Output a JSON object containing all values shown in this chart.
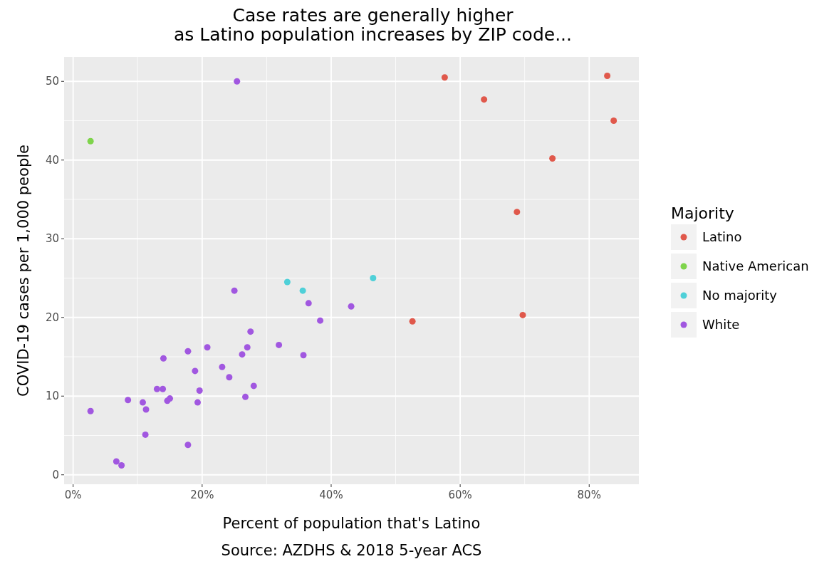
{
  "chart_data": {
    "type": "scatter",
    "title": "Case rates are generally higher\nas Latino population increases by ZIP code...",
    "xlabel": "Percent of population that's Latino",
    "ylabel": "COVID-19 cases per 1,000 people",
    "legend_title": "Majority",
    "legend": "right",
    "grid": true,
    "marker": "circle",
    "annotations": [
      "Source: AZDHS & 2018 5-year ACS"
    ],
    "xlim": [
      -1.4,
      87.7
    ],
    "ylim": [
      -1.2,
      53.1
    ],
    "xticks": [
      {
        "value": 0,
        "label": "0%"
      },
      {
        "value": 20,
        "label": "20%"
      },
      {
        "value": 40,
        "label": "40%"
      },
      {
        "value": 60,
        "label": "60%"
      },
      {
        "value": 80,
        "label": "80%"
      }
    ],
    "yticks": [
      0,
      10,
      20,
      30,
      40,
      50
    ],
    "series": [
      {
        "name": "Latino",
        "color": "#e0584b",
        "x": [
          57.6,
          63.7,
          82.8,
          83.8,
          74.3,
          68.8,
          52.6,
          69.7
        ],
        "values": [
          50.5,
          47.7,
          50.7,
          45.0,
          40.2,
          33.4,
          19.5,
          20.3
        ]
      },
      {
        "name": "Native American",
        "color": "#7ed44b",
        "x": [
          2.7
        ],
        "values": [
          42.4
        ]
      },
      {
        "name": "No majority",
        "color": "#4fd0d8",
        "x": [
          33.2,
          35.6,
          46.5
        ],
        "values": [
          24.5,
          23.4,
          25.0
        ]
      },
      {
        "name": "White",
        "color": "#a157e0",
        "x": [
          25.4,
          2.7,
          6.7,
          7.5,
          8.5,
          10.8,
          11.3,
          11.2,
          13.0,
          13.9,
          14.0,
          14.6,
          15.0,
          17.8,
          17.8,
          18.9,
          19.3,
          19.6,
          20.8,
          23.1,
          24.2,
          25.0,
          26.2,
          26.7,
          27.0,
          27.5,
          28.0,
          31.9,
          35.7,
          36.5,
          38.3,
          43.1
        ],
        "values": [
          50.0,
          8.1,
          1.7,
          1.2,
          9.5,
          9.2,
          8.3,
          5.1,
          10.9,
          10.9,
          14.8,
          9.4,
          9.7,
          3.8,
          15.7,
          13.2,
          9.2,
          10.7,
          16.2,
          13.7,
          12.4,
          23.4,
          15.3,
          9.9,
          16.2,
          18.2,
          11.3,
          16.5,
          15.2,
          21.8,
          19.6,
          21.4
        ]
      }
    ]
  }
}
